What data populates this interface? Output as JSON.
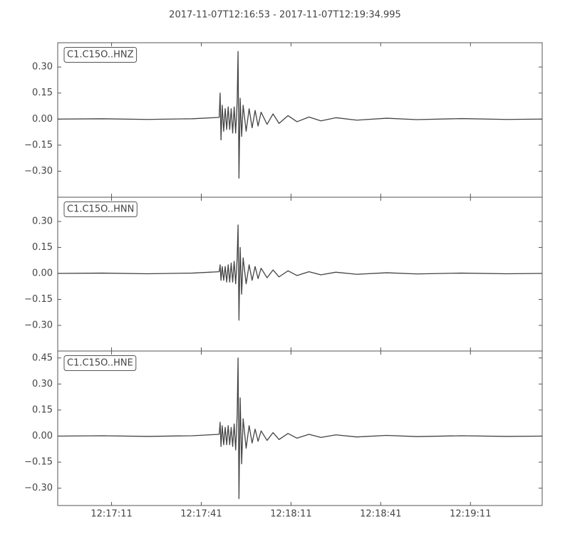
{
  "title": "2017-11-07T12:16:53  -  2017-11-07T12:19:34.995",
  "chart_data": [
    {
      "type": "line",
      "x": [
        0,
        15,
        30,
        45,
        54,
        54.3,
        54.6,
        55,
        55.5,
        56,
        56.5,
        57,
        57.5,
        58,
        58.5,
        59,
        59.5,
        60,
        60.3,
        60.6,
        61,
        61.5,
        62,
        63,
        64,
        65,
        66,
        67,
        68,
        70,
        72,
        74,
        77,
        80,
        84,
        88,
        93,
        100,
        110,
        120,
        135,
        150,
        161.995
      ],
      "series": [
        {
          "name": "C1.C15O..HNZ",
          "color": "#444444",
          "values": [
            0,
            0.002,
            -0.002,
            0.002,
            0.01,
            0.15,
            -0.12,
            0.08,
            -0.07,
            0.06,
            -0.06,
            0.07,
            -0.06,
            0.06,
            -0.08,
            0.07,
            -0.08,
            0.1,
            0.39,
            -0.34,
            0.12,
            -0.1,
            0.08,
            -0.07,
            0.06,
            -0.05,
            0.05,
            -0.04,
            0.04,
            -0.03,
            0.03,
            -0.025,
            0.02,
            -0.015,
            0.012,
            -0.01,
            0.008,
            -0.006,
            0.005,
            -0.003,
            0.003,
            -0.002,
            0
          ]
        }
      ],
      "xlim": [
        0,
        161.995
      ],
      "ylim": [
        -0.45,
        0.44
      ],
      "xticks": [
        {
          "value": 18,
          "label": "12:17:11"
        },
        {
          "value": 48,
          "label": "12:17:41"
        },
        {
          "value": 78,
          "label": "12:18:11"
        },
        {
          "value": 108,
          "label": "12:18:41"
        },
        {
          "value": 138,
          "label": "12:19:11"
        }
      ],
      "yticks": [
        {
          "value": -0.3,
          "label": "−0.30"
        },
        {
          "value": -0.15,
          "label": "−0.15"
        },
        {
          "value": 0,
          "label": "0.00"
        },
        {
          "value": 0.15,
          "label": "0.15"
        },
        {
          "value": 0.3,
          "label": "0.30"
        }
      ]
    },
    {
      "type": "line",
      "x": [
        0,
        15,
        30,
        45,
        54,
        54.3,
        54.6,
        55,
        55.5,
        56,
        56.5,
        57,
        57.5,
        58,
        58.5,
        59,
        59.5,
        60,
        60.3,
        60.6,
        61,
        61.5,
        62,
        63,
        64,
        65,
        66,
        67,
        68,
        70,
        72,
        74,
        77,
        80,
        84,
        88,
        93,
        100,
        110,
        120,
        135,
        150,
        161.995
      ],
      "series": [
        {
          "name": "C1.C15O..HNN",
          "color": "#444444",
          "values": [
            0,
            0.002,
            -0.002,
            0.002,
            0.01,
            0.05,
            -0.04,
            0.04,
            -0.04,
            0.04,
            -0.05,
            0.05,
            -0.05,
            0.06,
            -0.05,
            0.07,
            -0.06,
            0.09,
            0.28,
            -0.27,
            0.15,
            -0.12,
            0.09,
            -0.06,
            0.05,
            -0.04,
            0.04,
            -0.03,
            0.03,
            -0.025,
            0.02,
            -0.02,
            0.015,
            -0.012,
            0.01,
            -0.008,
            0.007,
            -0.005,
            0.004,
            -0.003,
            0.002,
            -0.002,
            0
          ]
        }
      ],
      "xlim": [
        0,
        161.995
      ],
      "ylim": [
        -0.448,
        0.44
      ],
      "xticks": [
        {
          "value": 18,
          "label": "12:17:11"
        },
        {
          "value": 48,
          "label": "12:17:41"
        },
        {
          "value": 78,
          "label": "12:18:11"
        },
        {
          "value": 108,
          "label": "12:18:41"
        },
        {
          "value": 138,
          "label": "12:19:11"
        }
      ],
      "yticks": [
        {
          "value": -0.3,
          "label": "−0.30"
        },
        {
          "value": -0.15,
          "label": "−0.15"
        },
        {
          "value": 0,
          "label": "0.00"
        },
        {
          "value": 0.15,
          "label": "0.15"
        },
        {
          "value": 0.3,
          "label": "0.30"
        }
      ]
    },
    {
      "type": "line",
      "x": [
        0,
        15,
        30,
        45,
        54,
        54.3,
        54.6,
        55,
        55.5,
        56,
        56.5,
        57,
        57.5,
        58,
        58.5,
        59,
        59.5,
        60,
        60.3,
        60.6,
        61,
        61.5,
        62,
        63,
        64,
        65,
        66,
        67,
        68,
        70,
        72,
        74,
        77,
        80,
        84,
        88,
        93,
        100,
        110,
        120,
        135,
        150,
        161.995
      ],
      "series": [
        {
          "name": "C1.C15O..HNE",
          "color": "#444444",
          "values": [
            0,
            0.002,
            -0.002,
            0.002,
            0.01,
            0.08,
            -0.06,
            0.06,
            -0.05,
            0.05,
            -0.05,
            0.06,
            -0.05,
            0.05,
            -0.06,
            0.07,
            -0.08,
            0.12,
            0.45,
            -0.36,
            0.22,
            -0.16,
            0.1,
            -0.07,
            0.06,
            -0.04,
            0.04,
            -0.03,
            0.03,
            -0.025,
            0.02,
            -0.02,
            0.015,
            -0.012,
            0.01,
            -0.008,
            0.007,
            -0.005,
            0.004,
            -0.003,
            0.002,
            -0.002,
            0
          ]
        }
      ],
      "xlim": [
        0,
        161.995
      ],
      "ylim": [
        -0.4,
        0.49
      ],
      "xticks": [
        {
          "value": 18,
          "label": "12:17:11"
        },
        {
          "value": 48,
          "label": "12:17:41"
        },
        {
          "value": 78,
          "label": "12:18:11"
        },
        {
          "value": 108,
          "label": "12:18:41"
        },
        {
          "value": 138,
          "label": "12:19:11"
        }
      ],
      "yticks": [
        {
          "value": -0.3,
          "label": "−0.30"
        },
        {
          "value": -0.15,
          "label": "−0.15"
        },
        {
          "value": 0,
          "label": "0.00"
        },
        {
          "value": 0.15,
          "label": "0.15"
        },
        {
          "value": 0.3,
          "label": "0.30"
        },
        {
          "value": 0.45,
          "label": "0.45"
        }
      ]
    }
  ]
}
